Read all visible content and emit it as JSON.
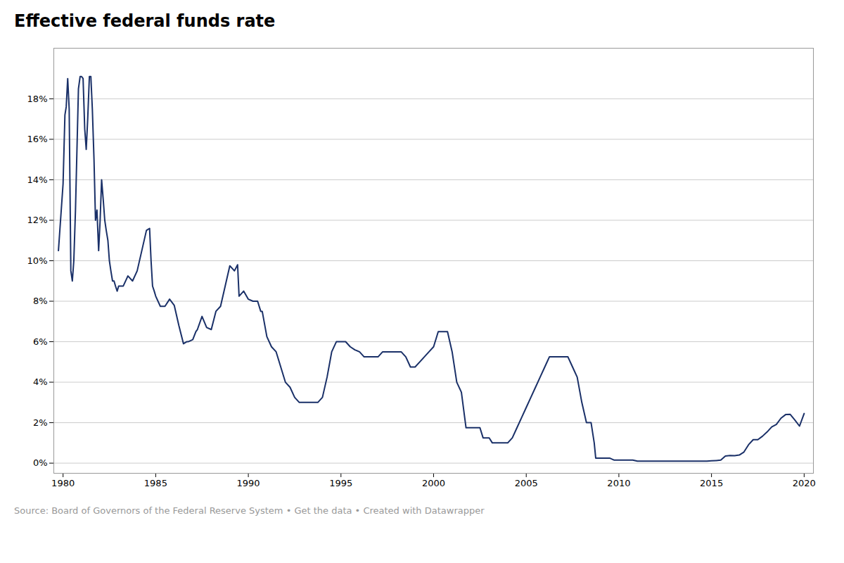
{
  "chart_data": {
    "type": "line",
    "title": "Effective federal funds rate",
    "source": "Source: Board of Governors of the Federal Reserve System • Get the data • Created with Datawrapper",
    "color": "#1a3068",
    "grid": true,
    "xlim": [
      1979.5,
      2020.5
    ],
    "ylim": [
      -0.5,
      20.5
    ],
    "xticks": [
      1980,
      1985,
      1990,
      1995,
      2000,
      2005,
      2010,
      2015,
      2020
    ],
    "yticks": [
      {
        "value": 0,
        "label": "0%"
      },
      {
        "value": 2,
        "label": "2%"
      },
      {
        "value": 4,
        "label": "4%"
      },
      {
        "value": 6,
        "label": "6%"
      },
      {
        "value": 8,
        "label": "8%"
      },
      {
        "value": 10,
        "label": "10%"
      },
      {
        "value": 12,
        "label": "12%"
      },
      {
        "value": 14,
        "label": "14%"
      },
      {
        "value": 16,
        "label": "16%"
      },
      {
        "value": 18,
        "label": "18%"
      }
    ],
    "x": [
      1979.75,
      1980.0,
      1980.1,
      1980.17,
      1980.25,
      1980.33,
      1980.42,
      1980.5,
      1980.58,
      1980.67,
      1980.75,
      1980.83,
      1980.92,
      1981.0,
      1981.08,
      1981.17,
      1981.25,
      1981.33,
      1981.42,
      1981.5,
      1981.58,
      1981.67,
      1981.75,
      1981.83,
      1981.92,
      1982.0,
      1982.08,
      1982.17,
      1982.25,
      1982.33,
      1982.42,
      1982.5,
      1982.58,
      1982.67,
      1982.75,
      1982.83,
      1982.92,
      1983.0,
      1983.25,
      1983.5,
      1983.75,
      1984.0,
      1984.25,
      1984.5,
      1984.67,
      1984.75,
      1984.83,
      1984.92,
      1985.0,
      1985.25,
      1985.5,
      1985.75,
      1986.0,
      1986.25,
      1986.5,
      1986.67,
      1986.75,
      1987.0,
      1987.17,
      1987.25,
      1987.5,
      1987.75,
      1988.0,
      1988.25,
      1988.5,
      1988.75,
      1989.0,
      1989.25,
      1989.42,
      1989.5,
      1989.75,
      1990.0,
      1990.25,
      1990.5,
      1990.67,
      1990.75,
      1991.0,
      1991.25,
      1991.5,
      1991.75,
      1992.0,
      1992.25,
      1992.5,
      1992.75,
      1993.0,
      1993.25,
      1993.5,
      1993.75,
      1994.0,
      1994.25,
      1994.5,
      1994.75,
      1995.0,
      1995.25,
      1995.5,
      1995.75,
      1996.0,
      1996.25,
      1996.5,
      1996.75,
      1997.0,
      1997.25,
      1997.5,
      1997.75,
      1998.0,
      1998.25,
      1998.5,
      1998.75,
      1999.0,
      1999.25,
      1999.5,
      1999.75,
      2000.0,
      2000.25,
      2000.5,
      2000.75,
      2001.0,
      2001.25,
      2001.5,
      2001.75,
      2002.0,
      2002.25,
      2002.5,
      2002.67,
      2002.75,
      2003.0,
      2003.17,
      2003.25,
      2003.5,
      2003.75,
      2004.0,
      2004.25,
      2004.5,
      2004.75,
      2005.0,
      2005.25,
      2005.5,
      2005.75,
      2006.0,
      2006.25,
      2006.5,
      2006.75,
      2007.0,
      2007.25,
      2007.5,
      2007.75,
      2008.0,
      2008.25,
      2008.5,
      2008.67,
      2008.75,
      2009.0,
      2009.25,
      2009.5,
      2009.75,
      2010.0,
      2010.25,
      2010.5,
      2010.75,
      2011.0,
      2011.25,
      2011.5,
      2011.75,
      2012.0,
      2012.25,
      2012.5,
      2012.75,
      2013.0,
      2013.25,
      2013.5,
      2013.75,
      2014.0,
      2014.25,
      2014.5,
      2014.75,
      2015.0,
      2015.25,
      2015.5,
      2015.75,
      2016.0,
      2016.25,
      2016.5,
      2016.75,
      2017.0,
      2017.25,
      2017.5,
      2017.75,
      2018.0,
      2018.25,
      2018.5,
      2018.75,
      2019.0,
      2019.25,
      2019.5,
      2019.75,
      2020.0
    ],
    "values": [
      10.5,
      13.8,
      17.2,
      17.6,
      19.0,
      17.5,
      9.5,
      9.0,
      10.0,
      12.5,
      15.5,
      18.5,
      19.1,
      19.1,
      19.0,
      16.5,
      15.5,
      17.0,
      19.1,
      19.1,
      17.5,
      15.0,
      12.0,
      12.5,
      10.5,
      12.0,
      14.0,
      13.0,
      12.0,
      11.5,
      11.0,
      10.0,
      9.5,
      9.0,
      9.0,
      8.75,
      8.5,
      8.75,
      8.75,
      9.25,
      9.0,
      9.5,
      10.5,
      11.5,
      11.6,
      10.0,
      8.75,
      8.5,
      8.25,
      7.75,
      7.75,
      8.1,
      7.8,
      6.8,
      5.9,
      6.0,
      6.0,
      6.1,
      6.5,
      6.6,
      7.25,
      6.7,
      6.6,
      7.5,
      7.75,
      8.75,
      9.75,
      9.5,
      9.8,
      8.25,
      8.5,
      8.1,
      8.0,
      8.0,
      7.5,
      7.5,
      6.25,
      5.75,
      5.5,
      4.75,
      4.0,
      3.75,
      3.25,
      3.0,
      3.0,
      3.0,
      3.0,
      3.0,
      3.25,
      4.25,
      5.5,
      6.0,
      6.0,
      6.0,
      5.75,
      5.6,
      5.5,
      5.25,
      5.25,
      5.25,
      5.25,
      5.5,
      5.5,
      5.5,
      5.5,
      5.5,
      5.25,
      4.75,
      4.75,
      5.0,
      5.25,
      5.5,
      5.75,
      6.5,
      6.5,
      6.5,
      5.5,
      4.0,
      3.5,
      1.75,
      1.75,
      1.75,
      1.75,
      1.25,
      1.25,
      1.25,
      1.0,
      1.0,
      1.0,
      1.0,
      1.0,
      1.25,
      1.75,
      2.25,
      2.75,
      3.25,
      3.75,
      4.25,
      4.75,
      5.25,
      5.25,
      5.25,
      5.25,
      5.25,
      4.75,
      4.25,
      3.0,
      2.0,
      2.0,
      1.0,
      0.25,
      0.25,
      0.25,
      0.25,
      0.15,
      0.15,
      0.15,
      0.15,
      0.15,
      0.1,
      0.1,
      0.1,
      0.1,
      0.1,
      0.1,
      0.1,
      0.1,
      0.1,
      0.1,
      0.1,
      0.1,
      0.1,
      0.1,
      0.1,
      0.1,
      0.12,
      0.13,
      0.15,
      0.35,
      0.38,
      0.37,
      0.4,
      0.55,
      0.91,
      1.16,
      1.16,
      1.33,
      1.54,
      1.79,
      1.91,
      2.22,
      2.4,
      2.41,
      2.13,
      1.83,
      2.45
    ]
  }
}
